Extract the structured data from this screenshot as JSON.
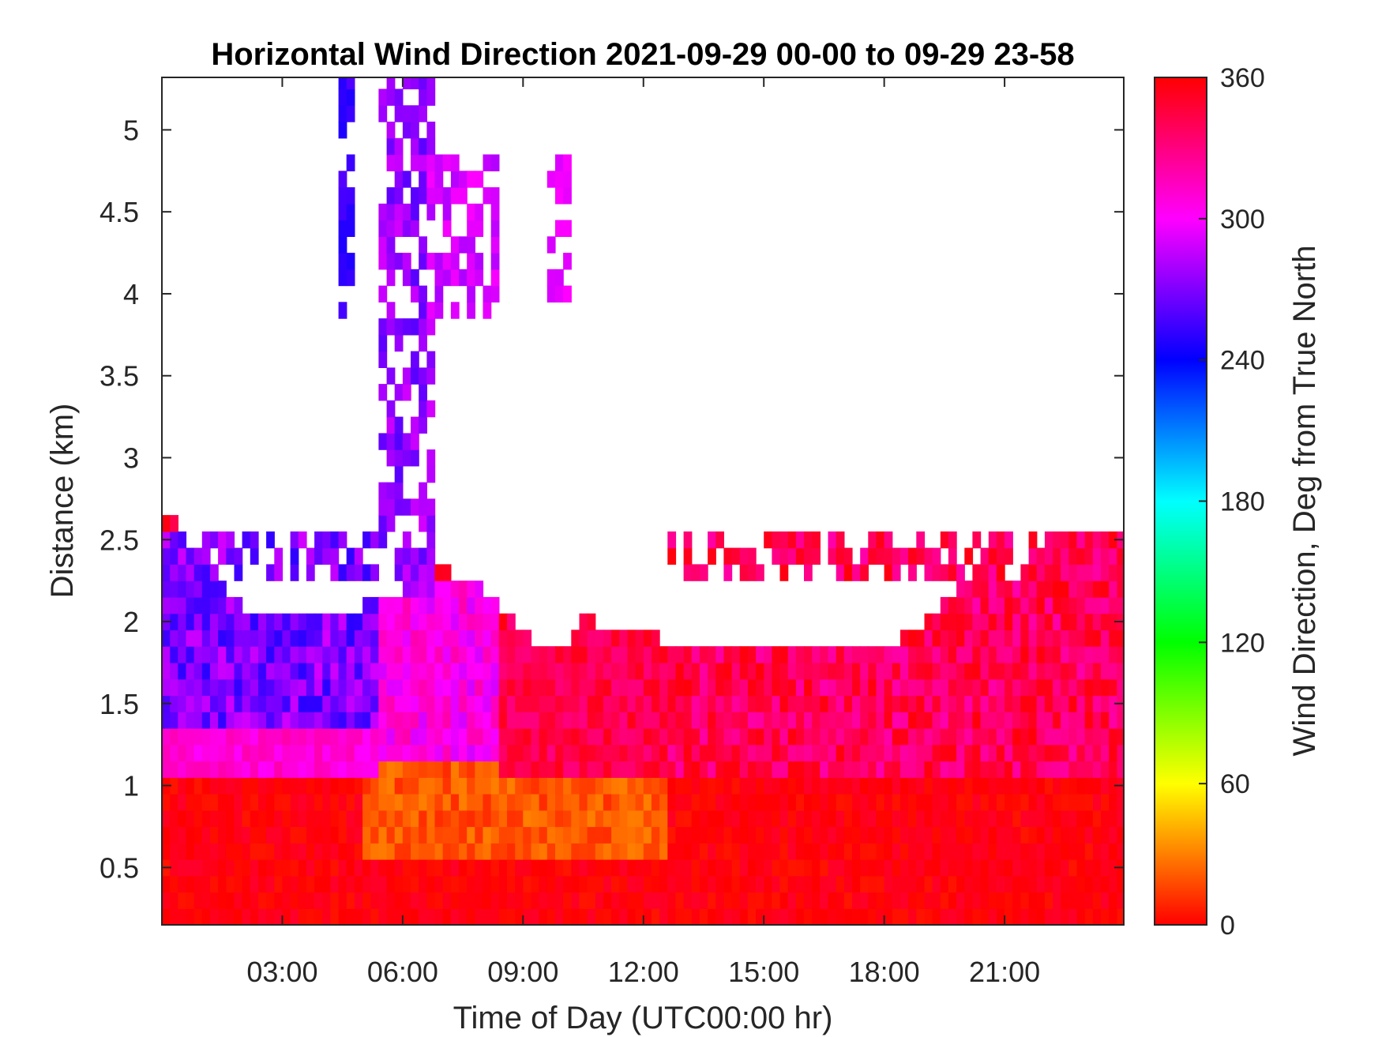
{
  "chart_data": {
    "type": "heatmap",
    "title": "Horizontal Wind Direction 2021-09-29 00-00 to 09-29 23-58",
    "xlabel": "Time of Day (UTC00:00 hr)",
    "ylabel": "Distance (km)",
    "colorbar_label": "Wind Direction, Deg from True North",
    "xlim_hours": [
      0,
      23.97
    ],
    "ylim_km": [
      0.15,
      5.32
    ],
    "x_ticks": [
      {
        "value": 3,
        "label": "03:00"
      },
      {
        "value": 6,
        "label": "06:00"
      },
      {
        "value": 9,
        "label": "09:00"
      },
      {
        "value": 12,
        "label": "12:00"
      },
      {
        "value": 15,
        "label": "15:00"
      },
      {
        "value": 18,
        "label": "18:00"
      },
      {
        "value": 21,
        "label": "21:00"
      }
    ],
    "y_ticks": [
      {
        "value": 0.5,
        "label": "0.5"
      },
      {
        "value": 1,
        "label": "1"
      },
      {
        "value": 1.5,
        "label": "1.5"
      },
      {
        "value": 2,
        "label": "2"
      },
      {
        "value": 2.5,
        "label": "2.5"
      },
      {
        "value": 3,
        "label": "3"
      },
      {
        "value": 3.5,
        "label": "3.5"
      },
      {
        "value": 4,
        "label": "4"
      },
      {
        "value": 4.5,
        "label": "4.5"
      },
      {
        "value": 5,
        "label": "5"
      }
    ],
    "colorbar": {
      "range": [
        0,
        360
      ],
      "ticks": [
        {
          "value": 0,
          "label": "0"
        },
        {
          "value": 60,
          "label": "60"
        },
        {
          "value": 120,
          "label": "120"
        },
        {
          "value": 180,
          "label": "180"
        },
        {
          "value": 240,
          "label": "240"
        },
        {
          "value": 300,
          "label": "300"
        },
        {
          "value": 360,
          "label": "360"
        }
      ],
      "colormap": "hsv"
    },
    "data_top_km": [
      {
        "hour": 0.0,
        "top": 2.62
      },
      {
        "hour": 0.4,
        "top": 2.62
      },
      {
        "hour": 0.5,
        "top": 2.52
      },
      {
        "hour": 1.0,
        "top": 2.42
      },
      {
        "hour": 1.5,
        "top": 2.28
      },
      {
        "hour": 1.8,
        "top": 2.12
      },
      {
        "hour": 2.5,
        "top": 2.02
      },
      {
        "hour": 3.5,
        "top": 2.02
      },
      {
        "hour": 4.5,
        "top": 2.05
      },
      {
        "hour": 5.2,
        "top": 2.12
      },
      {
        "hour": 6.0,
        "top": 2.2
      },
      {
        "hour": 7.0,
        "top": 2.32
      },
      {
        "hour": 8.0,
        "top": 2.22
      },
      {
        "hour": 9.0,
        "top": 1.92
      },
      {
        "hour": 10.0,
        "top": 1.82
      },
      {
        "hour": 10.5,
        "top": 2.02
      },
      {
        "hour": 12.0,
        "top": 1.92
      },
      {
        "hour": 14.0,
        "top": 1.82
      },
      {
        "hour": 17.5,
        "top": 1.82
      },
      {
        "hour": 18.5,
        "top": 1.92
      },
      {
        "hour": 19.2,
        "top": 2.05
      },
      {
        "hour": 19.8,
        "top": 2.2
      },
      {
        "hour": 20.5,
        "top": 2.3
      },
      {
        "hour": 21.5,
        "top": 2.3
      },
      {
        "hour": 22.3,
        "top": 2.45
      },
      {
        "hour": 22.8,
        "top": 2.52
      },
      {
        "hour": 23.97,
        "top": 2.52
      }
    ],
    "regions": [
      {
        "hours": [
          0,
          23.97
        ],
        "km": [
          0.15,
          1.05
        ],
        "deg_from": 350,
        "deg_to": 5
      },
      {
        "hours": [
          5,
          12.5
        ],
        "km": [
          0.55,
          1.15
        ],
        "deg_from": 10,
        "deg_to": 30
      },
      {
        "hours": [
          0,
          5.5
        ],
        "km": [
          1.05,
          2.6
        ],
        "deg_from": 250,
        "deg_to": 290
      },
      {
        "hours": [
          0,
          5.5
        ],
        "km": [
          1.05,
          1.35
        ],
        "deg_from": 300,
        "deg_to": 320
      },
      {
        "hours": [
          5.5,
          8.5
        ],
        "km": [
          1.1,
          2.3
        ],
        "deg_from": 290,
        "deg_to": 320
      },
      {
        "hours": [
          8.5,
          12.5
        ],
        "km": [
          1.05,
          1.95
        ],
        "deg_from": 330,
        "deg_to": 355
      },
      {
        "hours": [
          12.5,
          23.97
        ],
        "km": [
          1.05,
          2.55
        ],
        "deg_from": 320,
        "deg_to": 358
      },
      {
        "hours": [
          4.4,
          4.9
        ],
        "km": [
          3.9,
          5.32
        ],
        "deg_from": 245,
        "deg_to": 260
      },
      {
        "hours": [
          5.4,
          6.8
        ],
        "km": [
          2.2,
          5.32
        ],
        "deg_from": 260,
        "deg_to": 290
      },
      {
        "hours": [
          6.6,
          8.4
        ],
        "km": [
          3.9,
          4.85
        ],
        "deg_from": 280,
        "deg_to": 300
      },
      {
        "hours": [
          9.5,
          10.2
        ],
        "km": [
          4.0,
          4.8
        ],
        "deg_from": 290,
        "deg_to": 300
      }
    ]
  }
}
